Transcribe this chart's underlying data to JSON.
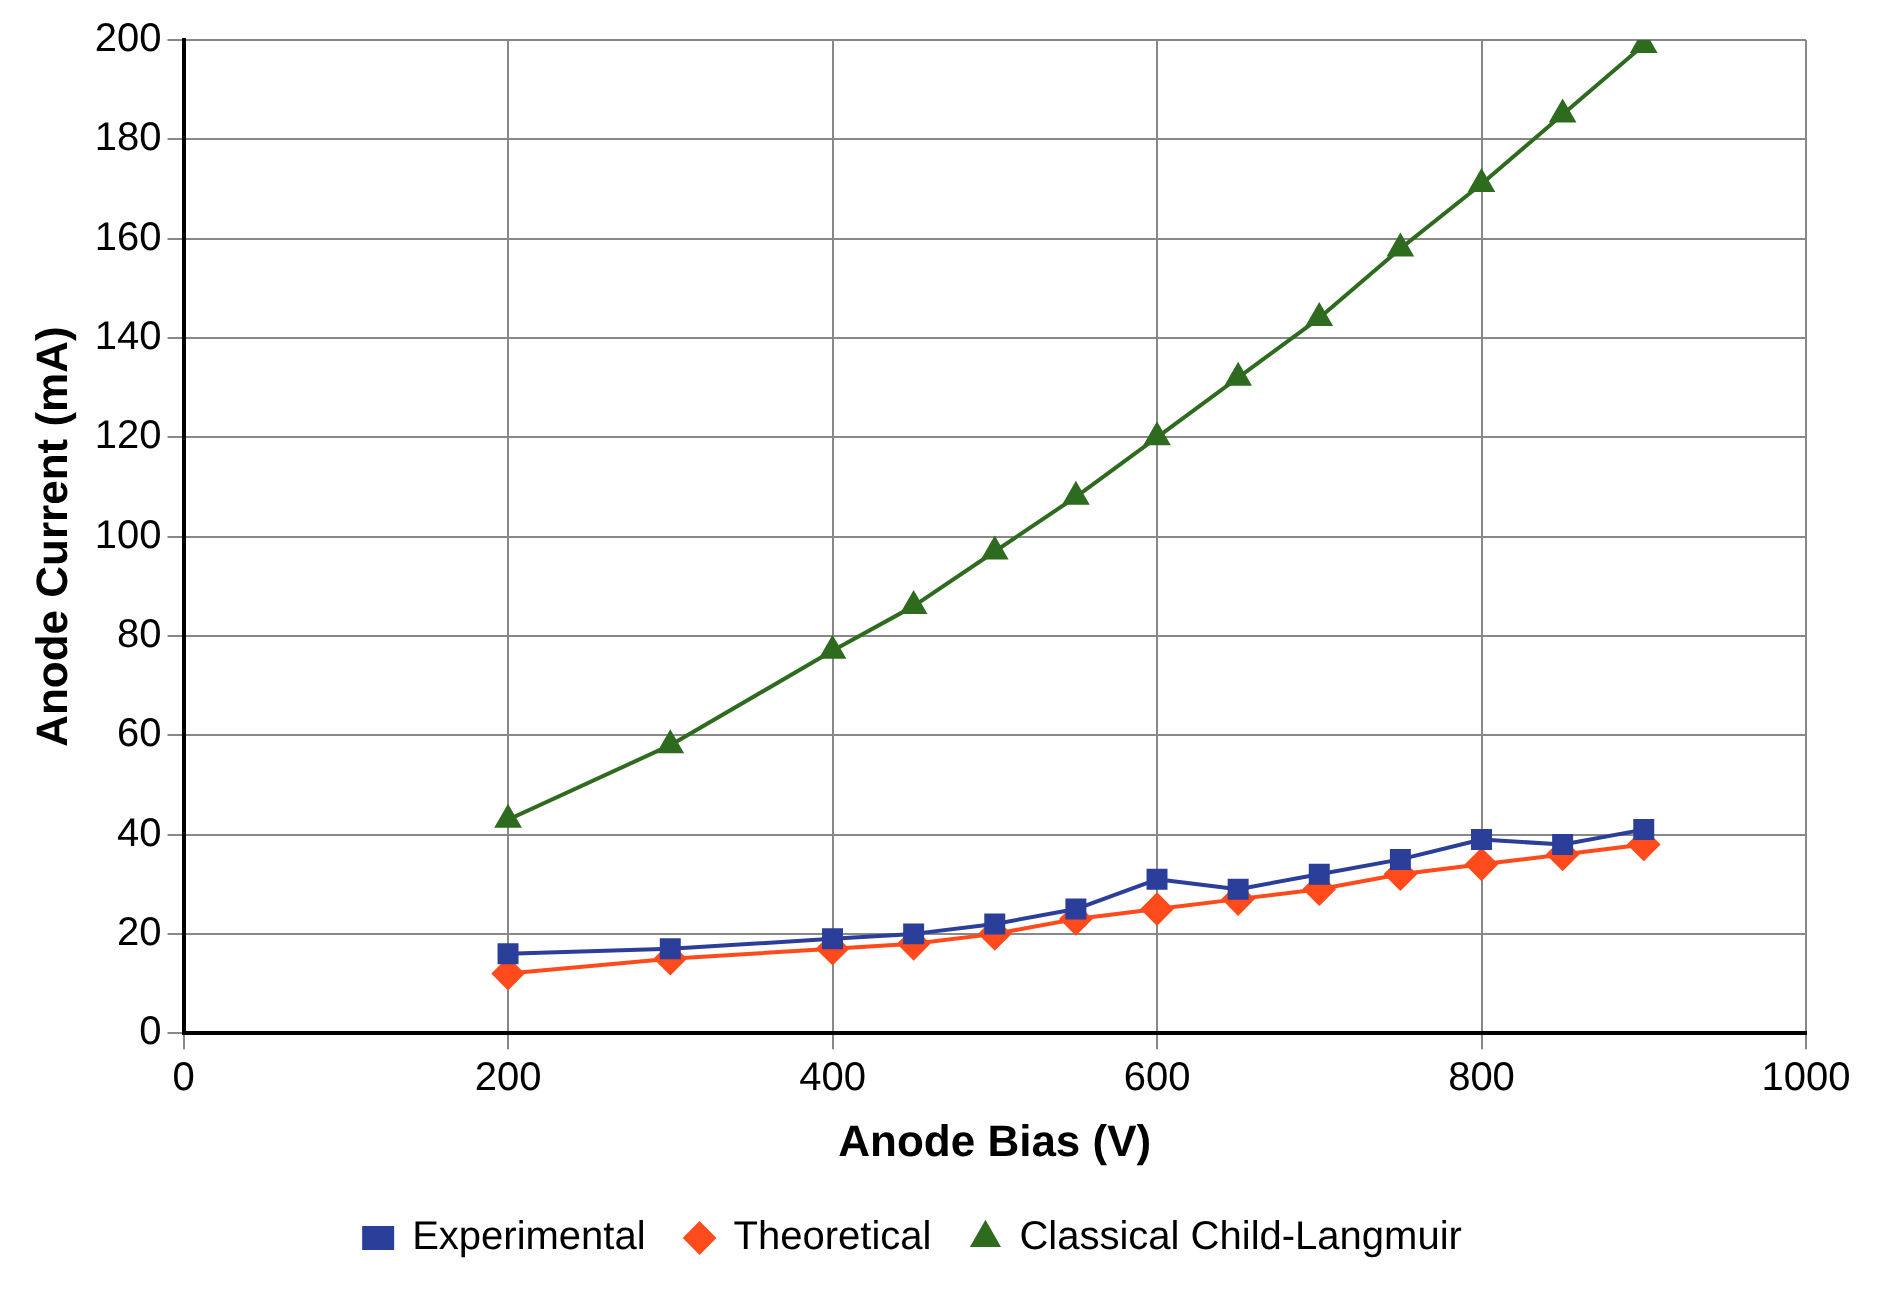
{
  "chart_data": {
    "type": "line",
    "xlabel": "Anode Bias (V)",
    "ylabel": "Anode Current (mA)",
    "x": [
      200,
      300,
      400,
      450,
      500,
      550,
      600,
      650,
      700,
      750,
      800,
      850,
      900
    ],
    "series": [
      {
        "name": "Experimental",
        "color": "#2b3e9a",
        "marker": "square",
        "values": [
          16,
          17,
          19,
          20,
          22,
          25,
          31,
          29,
          32,
          35,
          39,
          38,
          41
        ]
      },
      {
        "name": "Theoretical",
        "color": "#ff4a1c",
        "marker": "diamond",
        "values": [
          12,
          15,
          17,
          18,
          20,
          23,
          25,
          27,
          29,
          32,
          34,
          36,
          38
        ]
      },
      {
        "name": "Classical Child-Langmuir",
        "color": "#2e6b1f",
        "marker": "triangle",
        "values": [
          43,
          58,
          77,
          86,
          97,
          108,
          120,
          132,
          144,
          158,
          171,
          185,
          199
        ]
      }
    ],
    "xlim": [
      0,
      1000
    ],
    "xticks": [
      0,
      200,
      400,
      600,
      800,
      1000
    ],
    "ylim": [
      0,
      200
    ],
    "yticks": [
      0,
      20,
      40,
      60,
      80,
      100,
      120,
      140,
      160,
      180,
      200
    ],
    "grid": true,
    "legend": "bottom"
  }
}
